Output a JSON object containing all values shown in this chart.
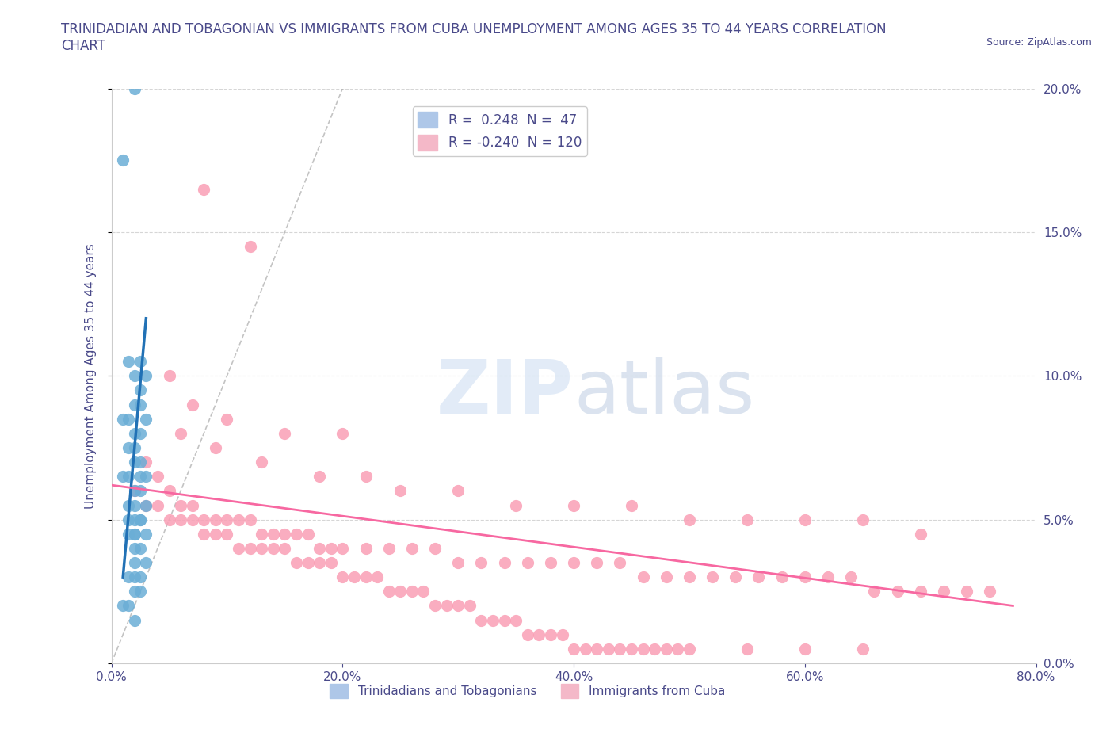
{
  "title": "TRINIDADIAN AND TOBAGONIAN VS IMMIGRANTS FROM CUBA UNEMPLOYMENT AMONG AGES 35 TO 44 YEARS CORRELATION\nCHART",
  "source_text": "Source: ZipAtlas.com",
  "ylabel": "Unemployment Among Ages 35 to 44 years",
  "xlabel": "",
  "xlim": [
    0.0,
    0.8
  ],
  "ylim": [
    0.0,
    0.2
  ],
  "xticks": [
    0.0,
    0.2,
    0.4,
    0.6,
    0.8
  ],
  "yticks": [
    0.0,
    0.05,
    0.1,
    0.15,
    0.2
  ],
  "xticklabels": [
    "0.0%",
    "20.0%",
    "40.0%",
    "60.0%",
    "80.0%"
  ],
  "yticklabels": [
    "0.0%",
    "5.0%",
    "10.0%",
    "15.0%",
    "20.0%"
  ],
  "R1": 0.248,
  "N1": 47,
  "R2": -0.24,
  "N2": 120,
  "blue_color": "#6baed6",
  "pink_color": "#fa9fb5",
  "blue_line_color": "#2171b5",
  "pink_line_color": "#f768a1",
  "title_color": "#4a4a8a",
  "axis_color": "#4a4a8a",
  "watermark_color": "#c6d9f0",
  "blue_scatter_x": [
    0.02,
    0.01,
    0.025,
    0.03,
    0.015,
    0.02,
    0.025,
    0.02,
    0.025,
    0.03,
    0.01,
    0.015,
    0.02,
    0.025,
    0.02,
    0.015,
    0.025,
    0.02,
    0.03,
    0.025,
    0.015,
    0.01,
    0.02,
    0.025,
    0.03,
    0.015,
    0.02,
    0.025,
    0.02,
    0.015,
    0.025,
    0.02,
    0.02,
    0.015,
    0.03,
    0.025,
    0.02,
    0.02,
    0.03,
    0.025,
    0.015,
    0.02,
    0.025,
    0.02,
    0.015,
    0.01,
    0.02
  ],
  "blue_scatter_y": [
    0.2,
    0.175,
    0.105,
    0.1,
    0.105,
    0.1,
    0.095,
    0.09,
    0.09,
    0.085,
    0.085,
    0.085,
    0.08,
    0.08,
    0.075,
    0.075,
    0.07,
    0.07,
    0.065,
    0.065,
    0.065,
    0.065,
    0.06,
    0.06,
    0.055,
    0.055,
    0.055,
    0.05,
    0.05,
    0.05,
    0.05,
    0.045,
    0.045,
    0.045,
    0.045,
    0.04,
    0.04,
    0.035,
    0.035,
    0.03,
    0.03,
    0.03,
    0.025,
    0.025,
    0.02,
    0.02,
    0.015
  ],
  "pink_scatter_x": [
    0.08,
    0.12,
    0.05,
    0.07,
    0.1,
    0.15,
    0.2,
    0.06,
    0.09,
    0.13,
    0.18,
    0.22,
    0.25,
    0.3,
    0.35,
    0.4,
    0.45,
    0.5,
    0.55,
    0.6,
    0.65,
    0.7,
    0.03,
    0.04,
    0.05,
    0.06,
    0.07,
    0.08,
    0.09,
    0.1,
    0.11,
    0.12,
    0.13,
    0.14,
    0.15,
    0.16,
    0.17,
    0.18,
    0.19,
    0.2,
    0.22,
    0.24,
    0.26,
    0.28,
    0.3,
    0.32,
    0.34,
    0.36,
    0.38,
    0.4,
    0.42,
    0.44,
    0.46,
    0.48,
    0.5,
    0.52,
    0.54,
    0.56,
    0.58,
    0.6,
    0.62,
    0.64,
    0.66,
    0.68,
    0.7,
    0.72,
    0.74,
    0.76,
    0.02,
    0.03,
    0.04,
    0.05,
    0.06,
    0.07,
    0.08,
    0.09,
    0.1,
    0.11,
    0.12,
    0.13,
    0.14,
    0.15,
    0.16,
    0.17,
    0.18,
    0.19,
    0.2,
    0.21,
    0.22,
    0.23,
    0.24,
    0.25,
    0.26,
    0.27,
    0.28,
    0.29,
    0.3,
    0.31,
    0.32,
    0.33,
    0.34,
    0.35,
    0.36,
    0.37,
    0.38,
    0.39,
    0.4,
    0.41,
    0.42,
    0.43,
    0.44,
    0.45,
    0.46,
    0.47,
    0.48,
    0.49,
    0.5,
    0.55,
    0.6,
    0.65
  ],
  "pink_scatter_y": [
    0.165,
    0.145,
    0.1,
    0.09,
    0.085,
    0.08,
    0.08,
    0.08,
    0.075,
    0.07,
    0.065,
    0.065,
    0.06,
    0.06,
    0.055,
    0.055,
    0.055,
    0.05,
    0.05,
    0.05,
    0.05,
    0.045,
    0.07,
    0.065,
    0.06,
    0.055,
    0.055,
    0.05,
    0.05,
    0.05,
    0.05,
    0.05,
    0.045,
    0.045,
    0.045,
    0.045,
    0.045,
    0.04,
    0.04,
    0.04,
    0.04,
    0.04,
    0.04,
    0.04,
    0.035,
    0.035,
    0.035,
    0.035,
    0.035,
    0.035,
    0.035,
    0.035,
    0.03,
    0.03,
    0.03,
    0.03,
    0.03,
    0.03,
    0.03,
    0.03,
    0.03,
    0.03,
    0.025,
    0.025,
    0.025,
    0.025,
    0.025,
    0.025,
    0.06,
    0.055,
    0.055,
    0.05,
    0.05,
    0.05,
    0.045,
    0.045,
    0.045,
    0.04,
    0.04,
    0.04,
    0.04,
    0.04,
    0.035,
    0.035,
    0.035,
    0.035,
    0.03,
    0.03,
    0.03,
    0.03,
    0.025,
    0.025,
    0.025,
    0.025,
    0.02,
    0.02,
    0.02,
    0.02,
    0.015,
    0.015,
    0.015,
    0.015,
    0.01,
    0.01,
    0.01,
    0.01,
    0.005,
    0.005,
    0.005,
    0.005,
    0.005,
    0.005,
    0.005,
    0.005,
    0.005,
    0.005,
    0.005,
    0.005,
    0.005,
    0.005
  ],
  "blue_line_x": [
    0.01,
    0.03
  ],
  "blue_line_y": [
    0.03,
    0.12
  ],
  "pink_line_x": [
    0.0,
    0.78
  ],
  "pink_line_y": [
    0.062,
    0.02
  ],
  "ref_line_x": [
    0.0,
    0.2
  ],
  "ref_line_y": [
    0.0,
    0.2
  ],
  "legend1_label": "R =  0.248  N =  47",
  "legend2_label": "R = -0.240  N = 120",
  "legend_blue_color": "#aec7e8",
  "legend_pink_color": "#f4b8c8",
  "bottom_legend1": "Trinidadians and Tobagonians",
  "bottom_legend2": "Immigrants from Cuba"
}
